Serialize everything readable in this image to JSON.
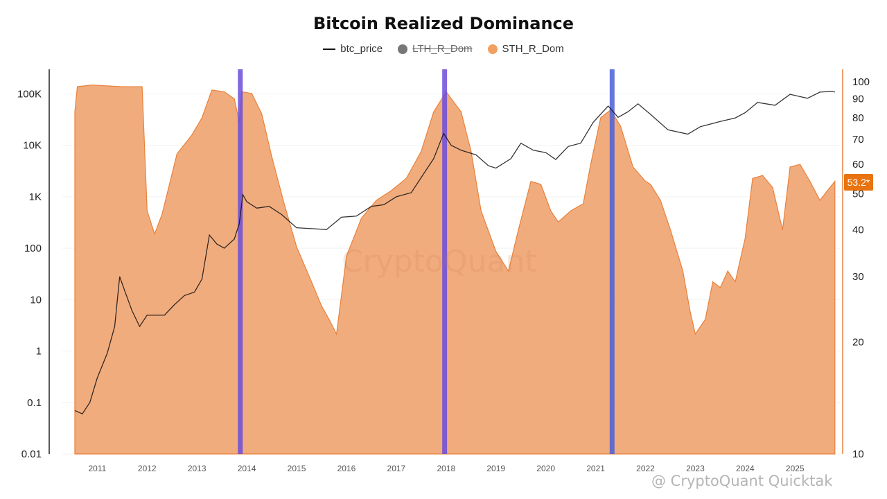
{
  "chart_data": {
    "type": "area",
    "title": "Bitcoin Realized Dominance",
    "legend": [
      "btc_price",
      "LTH_R_Dom",
      "STH_R_Dom"
    ],
    "legend_placement": "top-center",
    "series": [
      {
        "name": "STH_R_Dom",
        "axis": "right",
        "render": "area",
        "color": "#f0a370",
        "points": [
          [
            2010.55,
            83
          ],
          [
            2010.6,
            97
          ],
          [
            2010.9,
            98
          ],
          [
            2011.5,
            97
          ],
          [
            2011.9,
            97
          ],
          [
            2012.0,
            45
          ],
          [
            2012.15,
            39
          ],
          [
            2012.3,
            44
          ],
          [
            2012.6,
            64
          ],
          [
            2012.9,
            72
          ],
          [
            2013.1,
            80
          ],
          [
            2013.3,
            95
          ],
          [
            2013.55,
            94
          ],
          [
            2013.75,
            90
          ],
          [
            2013.85,
            78
          ],
          [
            2013.9,
            94
          ],
          [
            2014.1,
            93
          ],
          [
            2014.3,
            82
          ],
          [
            2014.5,
            63
          ],
          [
            2014.75,
            47
          ],
          [
            2015.0,
            36
          ],
          [
            2015.3,
            29
          ],
          [
            2015.5,
            25
          ],
          [
            2015.65,
            23
          ],
          [
            2015.8,
            21
          ],
          [
            2016.0,
            34
          ],
          [
            2016.3,
            43
          ],
          [
            2016.6,
            48
          ],
          [
            2016.9,
            51
          ],
          [
            2017.2,
            55
          ],
          [
            2017.5,
            65
          ],
          [
            2017.75,
            83
          ],
          [
            2018.0,
            94
          ],
          [
            2018.3,
            83
          ],
          [
            2018.5,
            65
          ],
          [
            2018.7,
            45
          ],
          [
            2019.0,
            35
          ],
          [
            2019.25,
            31
          ],
          [
            2019.45,
            40
          ],
          [
            2019.7,
            54
          ],
          [
            2019.9,
            53
          ],
          [
            2020.1,
            45
          ],
          [
            2020.25,
            42
          ],
          [
            2020.5,
            45
          ],
          [
            2020.75,
            47
          ],
          [
            2020.9,
            60
          ],
          [
            2021.1,
            80
          ],
          [
            2021.3,
            84
          ],
          [
            2021.5,
            76
          ],
          [
            2021.75,
            59
          ],
          [
            2022.0,
            54
          ],
          [
            2022.1,
            53
          ],
          [
            2022.3,
            48
          ],
          [
            2022.5,
            40
          ],
          [
            2022.75,
            31
          ],
          [
            2022.9,
            24
          ],
          [
            2023.0,
            21
          ],
          [
            2023.2,
            23
          ],
          [
            2023.35,
            29
          ],
          [
            2023.5,
            28
          ],
          [
            2023.65,
            31
          ],
          [
            2023.8,
            29
          ],
          [
            2024.0,
            38
          ],
          [
            2024.15,
            55
          ],
          [
            2024.35,
            56
          ],
          [
            2024.55,
            52
          ],
          [
            2024.75,
            40
          ],
          [
            2024.9,
            59
          ],
          [
            2025.1,
            60
          ],
          [
            2025.3,
            54
          ],
          [
            2025.5,
            48
          ],
          [
            2025.65,
            51
          ],
          [
            2025.8,
            54
          ]
        ]
      },
      {
        "name": "btc_price",
        "axis": "left",
        "render": "line",
        "color": "#111111",
        "points": [
          [
            2010.55,
            0.07
          ],
          [
            2010.7,
            0.06
          ],
          [
            2010.85,
            0.1
          ],
          [
            2011.0,
            0.3
          ],
          [
            2011.2,
            0.9
          ],
          [
            2011.35,
            3
          ],
          [
            2011.45,
            28
          ],
          [
            2011.55,
            15
          ],
          [
            2011.7,
            6
          ],
          [
            2011.85,
            3
          ],
          [
            2012.0,
            5
          ],
          [
            2012.15,
            5
          ],
          [
            2012.35,
            5
          ],
          [
            2012.55,
            8
          ],
          [
            2012.75,
            12
          ],
          [
            2012.95,
            14
          ],
          [
            2013.1,
            25
          ],
          [
            2013.25,
            180
          ],
          [
            2013.4,
            120
          ],
          [
            2013.55,
            100
          ],
          [
            2013.75,
            150
          ],
          [
            2013.85,
            300
          ],
          [
            2013.92,
            1100
          ],
          [
            2014.0,
            800
          ],
          [
            2014.2,
            600
          ],
          [
            2014.45,
            650
          ],
          [
            2014.7,
            450
          ],
          [
            2015.0,
            250
          ],
          [
            2015.3,
            240
          ],
          [
            2015.6,
            230
          ],
          [
            2015.9,
            400
          ],
          [
            2016.2,
            420
          ],
          [
            2016.5,
            650
          ],
          [
            2016.75,
            700
          ],
          [
            2017.0,
            1000
          ],
          [
            2017.3,
            1200
          ],
          [
            2017.55,
            2800
          ],
          [
            2017.75,
            5500
          ],
          [
            2017.95,
            17000
          ],
          [
            2018.1,
            10000
          ],
          [
            2018.3,
            8000
          ],
          [
            2018.6,
            6500
          ],
          [
            2018.85,
            4000
          ],
          [
            2019.0,
            3600
          ],
          [
            2019.3,
            5500
          ],
          [
            2019.5,
            11000
          ],
          [
            2019.75,
            8000
          ],
          [
            2020.0,
            7200
          ],
          [
            2020.2,
            5300
          ],
          [
            2020.45,
            9500
          ],
          [
            2020.7,
            11000
          ],
          [
            2020.95,
            28000
          ],
          [
            2021.25,
            58000
          ],
          [
            2021.45,
            35000
          ],
          [
            2021.65,
            45000
          ],
          [
            2021.85,
            64000
          ],
          [
            2022.1,
            40000
          ],
          [
            2022.45,
            20000
          ],
          [
            2022.85,
            16500
          ],
          [
            2023.1,
            23000
          ],
          [
            2023.5,
            29000
          ],
          [
            2023.8,
            34000
          ],
          [
            2024.0,
            43000
          ],
          [
            2024.25,
            68000
          ],
          [
            2024.6,
            60000
          ],
          [
            2024.9,
            98000
          ],
          [
            2025.25,
            82000
          ],
          [
            2025.5,
            108000
          ],
          [
            2025.75,
            112000
          ],
          [
            2025.8,
            108000
          ]
        ]
      }
    ],
    "left_axis": {
      "scale": "log",
      "ylim": [
        0.01,
        300000
      ],
      "ticks": [
        "0.01",
        "0.1",
        "1",
        "10",
        "100",
        "1K",
        "10K",
        "100K"
      ]
    },
    "right_axis": {
      "scale": "log",
      "ylim": [
        10,
        108
      ],
      "ticks": [
        "10",
        "20",
        "30",
        "40",
        "50",
        "60",
        "70",
        "80",
        "90",
        "100"
      ]
    },
    "x_axis": {
      "xlim": [
        2010.3,
        2025.9
      ],
      "ticks": [
        "2011",
        "2012",
        "2013",
        "2014",
        "2015",
        "2016",
        "2017",
        "2018",
        "2019",
        "2020",
        "2021",
        "2022",
        "2023",
        "2024",
        "2025"
      ]
    },
    "vertical_markers": [
      {
        "x": 2013.87,
        "color": "#6b4cdb"
      },
      {
        "x": 2017.97,
        "color": "#6b4cdb"
      },
      {
        "x": 2021.33,
        "color": "#4a5fd8"
      }
    ],
    "current_value_label": "53.2*",
    "watermark": "CryptoQuant",
    "credit": "@ CryptoQuant Quicktak",
    "grid": false
  }
}
